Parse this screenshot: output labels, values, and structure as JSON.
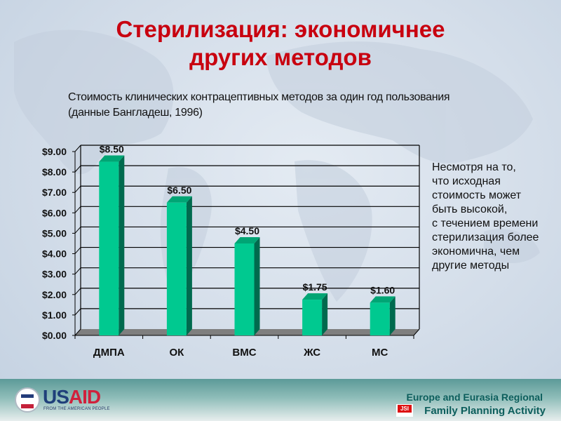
{
  "slide": {
    "title_line1": "Стерилизация: экономичнее",
    "title_line2": "других методов",
    "subtitle_line1": "Стоимость клинических контрацептивных методов за один год пользования",
    "subtitle_line2": "(данные Бангладеш, 1996)",
    "note_lines": [
      "Несмотря на то,",
      "что исходная",
      "стоимость может",
      "быть высокой,",
      "с течением времени",
      "стерилизация более",
      "экономична, чем",
      "другие методы"
    ]
  },
  "footer": {
    "usaid_us": "US",
    "usaid_aid": "AID",
    "usaid_tagline": "FROM THE AMERICAN PEOPLE",
    "project_line1": "Europe and Eurasia Regional",
    "project_line2": "Family Planning Activity",
    "jsi_logo": "JSI"
  },
  "colors": {
    "title": "#c8000f",
    "bar_front": "#00c990",
    "bar_side": "#006a4e",
    "bar_top": "#00a574",
    "floor": "#7f7f7f"
  },
  "chart_data": {
    "type": "bar",
    "style": "3d-column",
    "title": "Стоимость клинических контрацептивных методов за один год пользования (данные Бангладеш, 1996)",
    "categories": [
      "ДМПА",
      "ОК",
      "ВМС",
      "ЖС",
      "МС"
    ],
    "values": [
      8.5,
      6.5,
      4.5,
      1.75,
      1.6
    ],
    "value_labels": [
      "$8.50",
      "$6.50",
      "$4.50",
      "$1.75",
      "$1.60"
    ],
    "xlabel": "",
    "ylabel": "",
    "ylim": [
      0,
      9
    ],
    "yticks": [
      "$0.00",
      "$1.00",
      "$2.00",
      "$3.00",
      "$4.00",
      "$5.00",
      "$6.00",
      "$7.00",
      "$8.00",
      "$9.00"
    ],
    "grid": true,
    "legend": "none"
  }
}
